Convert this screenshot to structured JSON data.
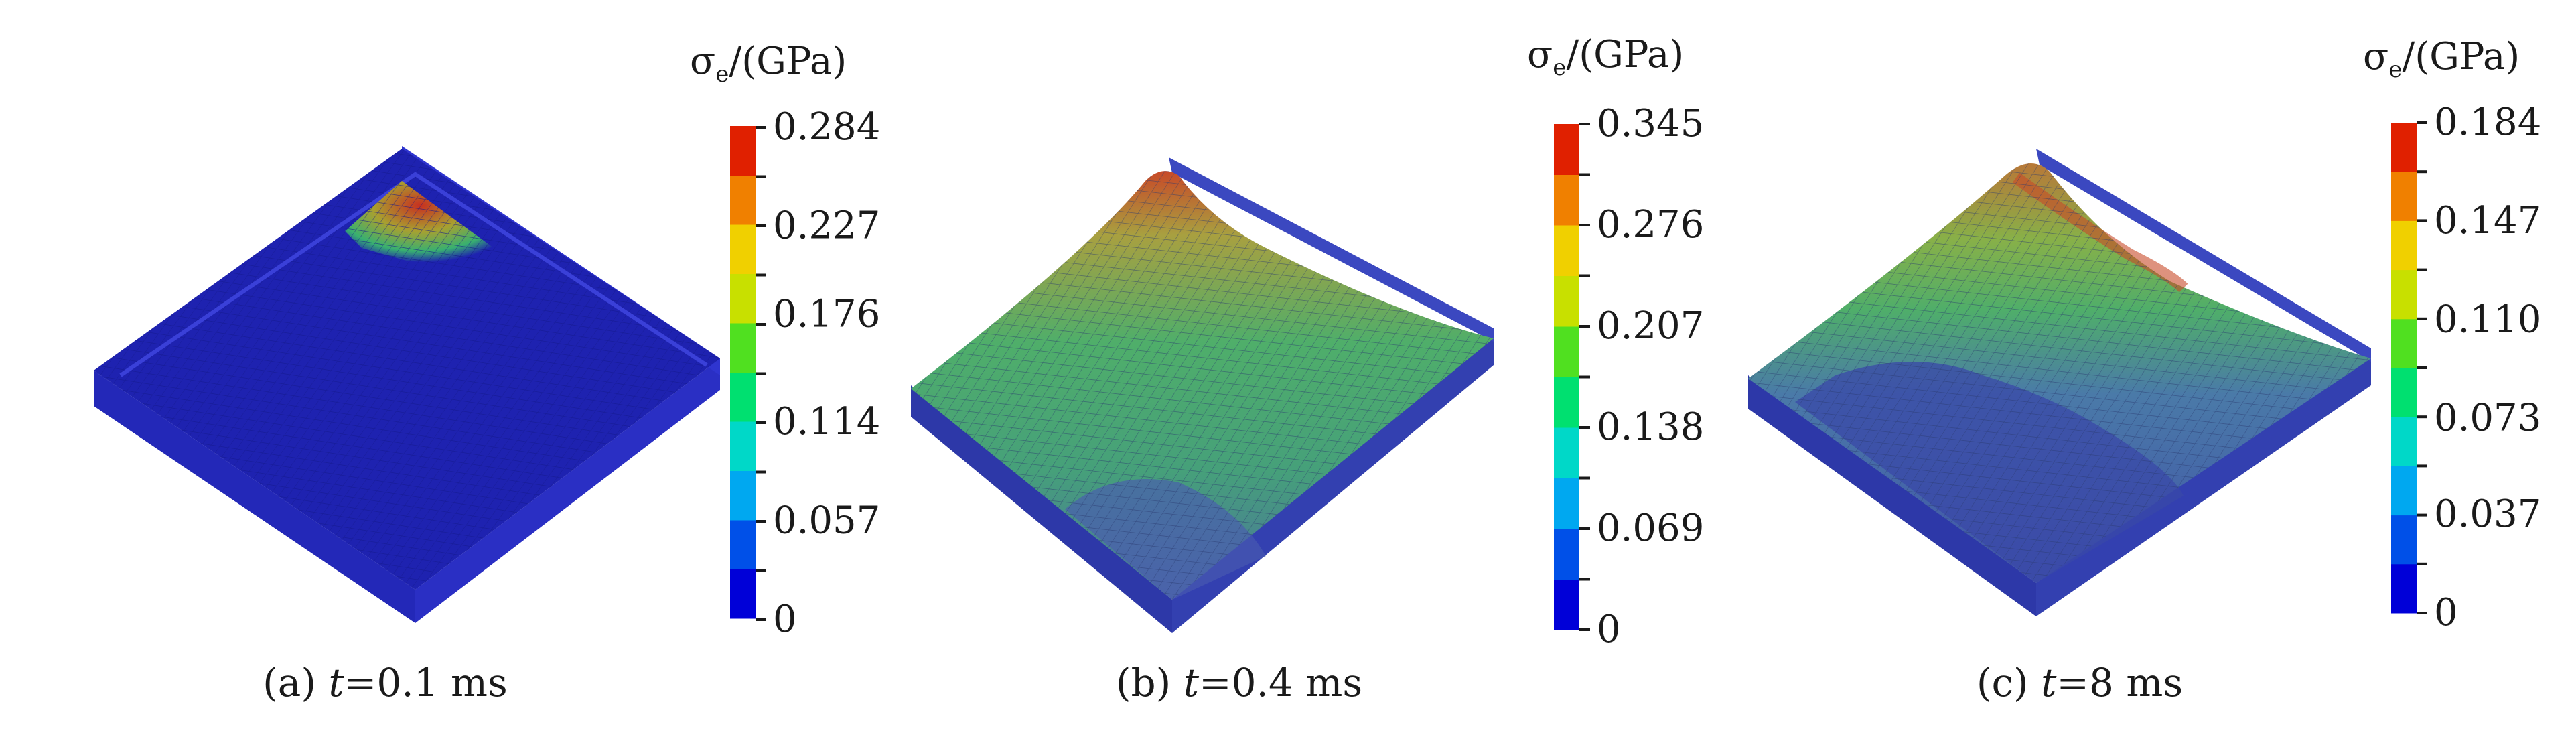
{
  "figure": {
    "panels": [
      {
        "id": "a",
        "caption_prefix": "(a) ",
        "caption_var": "t",
        "caption_value": "=0.1 ms",
        "colorbar_title_main": "σ",
        "colorbar_title_sub": "e",
        "colorbar_title_unit": "/(GPa)",
        "tick_labels": [
          "0.284",
          "0.227",
          "0.176",
          "0.114",
          "0.057",
          "0"
        ],
        "tick_values": [
          0.284,
          0.227,
          0.176,
          0.114,
          0.057,
          0
        ]
      },
      {
        "id": "b",
        "caption_prefix": "(b) ",
        "caption_var": "t",
        "caption_value": "=0.4 ms",
        "colorbar_title_main": "σ",
        "colorbar_title_sub": "e",
        "colorbar_title_unit": "/(GPa)",
        "tick_labels": [
          "0.345",
          "0.276",
          "0.207",
          "0.138",
          "0.069",
          "0"
        ],
        "tick_values": [
          0.345,
          0.276,
          0.207,
          0.138,
          0.069,
          0
        ]
      },
      {
        "id": "c",
        "caption_prefix": "(c) ",
        "caption_var": "t",
        "caption_value": "=8 ms",
        "colorbar_title_main": "σ",
        "colorbar_title_sub": "e",
        "colorbar_title_unit": "/(GPa)",
        "tick_labels": [
          "0.184",
          "0.147",
          "0.110",
          "0.073",
          "0.037",
          "0"
        ],
        "tick_values": [
          0.184,
          0.147,
          0.11,
          0.073,
          0.037,
          0
        ]
      }
    ],
    "colormap": [
      "#0000d8",
      "#0050e8",
      "#00a8f0",
      "#00d8c8",
      "#00e070",
      "#50e020",
      "#c8e000",
      "#f0d000",
      "#f08000",
      "#e02000"
    ],
    "colors": {
      "plate_blue": "#1f23b4",
      "plate_side": "#2b30c8",
      "plate_edge": "#3a40d8",
      "translucent_blue": "#3b4aa0",
      "green_stress": "#3fae6a",
      "yellow_stress": "#b8b840",
      "red_stress": "#d04020"
    }
  }
}
